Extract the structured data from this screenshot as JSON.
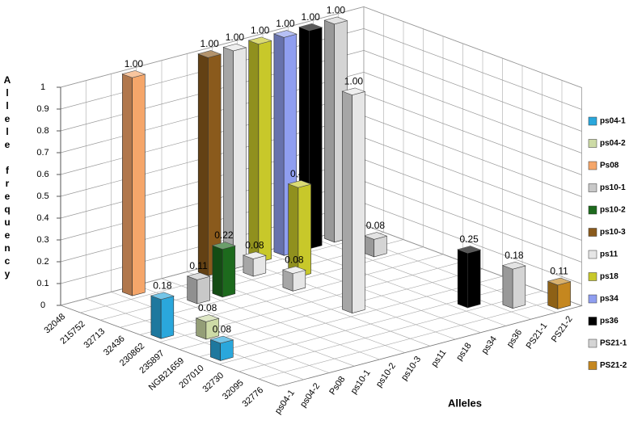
{
  "chart_data": {
    "type": "bar3d",
    "y_label": "Allele frequency",
    "x_label": "Alleles",
    "categories": [
      "32048",
      "215752",
      "32713",
      "32436",
      "230862",
      "235897",
      "NGB21659",
      "207010",
      "32730",
      "32095",
      "32776"
    ],
    "ylim": [
      0,
      1
    ],
    "yticks": [
      0,
      0.1,
      0.2,
      0.3,
      0.4,
      0.5,
      0.6,
      0.7,
      0.8,
      0.9,
      1
    ],
    "grid": true,
    "legend": "right",
    "series": [
      {
        "name": "ps04-1",
        "color": "#2aa7dc",
        "values": [
          null,
          null,
          null,
          null,
          0.18,
          null,
          null,
          0.08,
          null,
          null,
          null
        ],
        "value_labels": [
          null,
          null,
          null,
          null,
          "0.18",
          null,
          null,
          "0.08",
          null,
          null,
          null
        ]
      },
      {
        "name": "ps04-2",
        "color": "#cddba6",
        "values": [
          null,
          null,
          null,
          null,
          null,
          0.08,
          null,
          null,
          null,
          null,
          null
        ],
        "value_labels": [
          null,
          null,
          null,
          null,
          null,
          "0.08",
          null,
          null,
          null,
          null,
          null
        ]
      },
      {
        "name": "Ps08",
        "color": "#f5a66a",
        "values": [
          1,
          null,
          null,
          null,
          null,
          null,
          null,
          null,
          null,
          null,
          null
        ],
        "value_labels": [
          "1.00",
          null,
          null,
          null,
          null,
          null,
          null,
          null,
          null,
          null,
          null
        ]
      },
      {
        "name": "ps10-1",
        "color": "#c8c8c8",
        "values": [
          null,
          null,
          0.11,
          null,
          null,
          null,
          null,
          null,
          null,
          null,
          null
        ],
        "value_labels": [
          null,
          null,
          "0.11",
          null,
          null,
          null,
          null,
          null,
          null,
          null,
          null
        ]
      },
      {
        "name": "ps10-2",
        "color": "#1d6a1d",
        "values": [
          null,
          null,
          0.22,
          null,
          null,
          null,
          null,
          null,
          null,
          null,
          null
        ],
        "value_labels": [
          null,
          null,
          "0.22",
          null,
          null,
          null,
          null,
          null,
          null,
          null,
          null
        ]
      },
      {
        "name": "ps10-3",
        "color": "#8a5a1c",
        "values": [
          1,
          null,
          null,
          null,
          null,
          null,
          null,
          null,
          null,
          null,
          null
        ],
        "value_labels": [
          "1.00",
          null,
          null,
          null,
          null,
          null,
          null,
          null,
          null,
          null,
          null
        ]
      },
      {
        "name": "ps11",
        "color": "#e6e6e6",
        "values": [
          1,
          0.08,
          null,
          0.08,
          null,
          null,
          1,
          null,
          null,
          null,
          null
        ],
        "value_labels": [
          "1.00",
          "0.08",
          null,
          "0.08",
          null,
          null,
          "1.00",
          null,
          null,
          null,
          null
        ]
      },
      {
        "name": "ps18",
        "color": "#c8c82a",
        "values": [
          1,
          null,
          0.41,
          null,
          null,
          null,
          null,
          null,
          null,
          null,
          null
        ],
        "value_labels": [
          "1.00",
          null,
          "0.41",
          null,
          null,
          null,
          null,
          null,
          null,
          null,
          null
        ]
      },
      {
        "name": "ps34",
        "color": "#8f9ef0",
        "values": [
          1,
          null,
          null,
          null,
          null,
          null,
          null,
          null,
          null,
          null,
          null
        ],
        "value_labels": [
          "1.00",
          null,
          null,
          null,
          null,
          null,
          null,
          null,
          null,
          null,
          null
        ]
      },
      {
        "name": "ps36",
        "color": "#000000",
        "values": [
          1,
          null,
          null,
          null,
          null,
          null,
          null,
          null,
          0.25,
          null,
          null
        ],
        "value_labels": [
          "1.00",
          null,
          null,
          null,
          null,
          null,
          null,
          null,
          "0.25",
          null,
          null
        ]
      },
      {
        "name": "PS21-1",
        "color": "#d4d4d4",
        "values": [
          1,
          null,
          0.08,
          null,
          null,
          null,
          null,
          null,
          null,
          0.18,
          null
        ],
        "value_labels": [
          "1.00",
          null,
          "0.08",
          null,
          null,
          null,
          null,
          null,
          null,
          "0.18",
          null
        ]
      },
      {
        "name": "PS21-2",
        "color": "#c5871f",
        "values": [
          null,
          null,
          null,
          null,
          null,
          null,
          null,
          null,
          null,
          null,
          0.11
        ],
        "value_labels": [
          null,
          null,
          null,
          null,
          null,
          null,
          null,
          null,
          null,
          null,
          "0.11"
        ]
      }
    ]
  }
}
